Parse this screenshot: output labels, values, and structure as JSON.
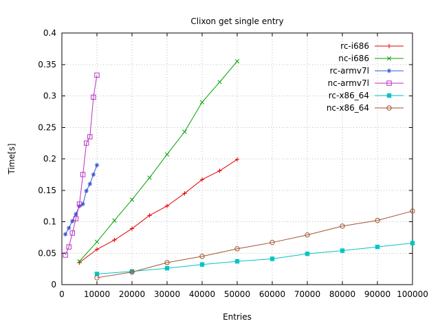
{
  "page": {
    "background": "#ffffff"
  },
  "chart_data": {
    "type": "line",
    "title": "Clixon get single entry",
    "xlabel": "Entries",
    "ylabel": "Time[s]",
    "xlim": [
      0,
      100000
    ],
    "ylim": [
      0,
      0.4
    ],
    "xticks": [
      0,
      10000,
      20000,
      30000,
      40000,
      50000,
      60000,
      70000,
      80000,
      90000,
      100000
    ],
    "xtick_labels": [
      "0",
      "10000",
      "20000",
      "30000",
      "40000",
      "50000",
      "60000",
      "70000",
      "80000",
      "90000",
      "100000"
    ],
    "yticks": [
      0,
      0.05,
      0.1,
      0.15,
      0.2,
      0.25,
      0.3,
      0.35,
      0.4
    ],
    "ytick_labels": [
      "0",
      "0.05",
      "0.1",
      "0.15",
      "0.2",
      "0.25",
      "0.3",
      "0.35",
      "0.4"
    ],
    "grid": true,
    "grid_color": "#bbbbbb",
    "axis_color": "#000000",
    "legend_position": "top-right-inside",
    "series": [
      {
        "name": "rc-i686",
        "color": "#e00000",
        "marker": "plus",
        "x": [
          5000,
          10000,
          15000,
          20000,
          25000,
          30000,
          35000,
          40000,
          45000,
          50000
        ],
        "y": [
          0.035,
          0.056,
          0.071,
          0.089,
          0.11,
          0.125,
          0.145,
          0.167,
          0.181,
          0.199
        ]
      },
      {
        "name": "nc-i686",
        "color": "#00a000",
        "marker": "cross",
        "x": [
          5000,
          10000,
          15000,
          20000,
          25000,
          30000,
          35000,
          40000,
          45000,
          50000
        ],
        "y": [
          0.037,
          0.068,
          0.102,
          0.135,
          0.17,
          0.207,
          0.243,
          0.29,
          0.322,
          0.355
        ]
      },
      {
        "name": "rc-armv7l",
        "color": "#3355cc",
        "marker": "asterisk",
        "x": [
          1000,
          2000,
          3000,
          4000,
          5000,
          6000,
          7000,
          8000,
          9000,
          10000
        ],
        "y": [
          0.08,
          0.09,
          0.101,
          0.112,
          0.125,
          0.128,
          0.149,
          0.16,
          0.175,
          0.19
        ]
      },
      {
        "name": "nc-armv7l",
        "color": "#b92fc2",
        "marker": "square-open",
        "x": [
          1000,
          2000,
          3000,
          4000,
          5000,
          6000,
          7000,
          8000,
          9000,
          10000
        ],
        "y": [
          0.047,
          0.06,
          0.082,
          0.105,
          0.128,
          0.175,
          0.225,
          0.235,
          0.298,
          0.333
        ]
      },
      {
        "name": "rc-x86_64",
        "color": "#00c5c5",
        "marker": "square-filled",
        "x": [
          10000,
          20000,
          30000,
          40000,
          50000,
          60000,
          70000,
          80000,
          90000,
          100000
        ],
        "y": [
          0.017,
          0.021,
          0.026,
          0.032,
          0.037,
          0.041,
          0.049,
          0.054,
          0.06,
          0.066
        ]
      },
      {
        "name": "nc-x86_64",
        "color": "#a0522d",
        "marker": "circle-open",
        "x": [
          10000,
          20000,
          30000,
          40000,
          50000,
          60000,
          70000,
          80000,
          90000,
          100000
        ],
        "y": [
          0.011,
          0.02,
          0.035,
          0.045,
          0.057,
          0.067,
          0.079,
          0.093,
          0.102,
          0.117
        ]
      }
    ]
  }
}
